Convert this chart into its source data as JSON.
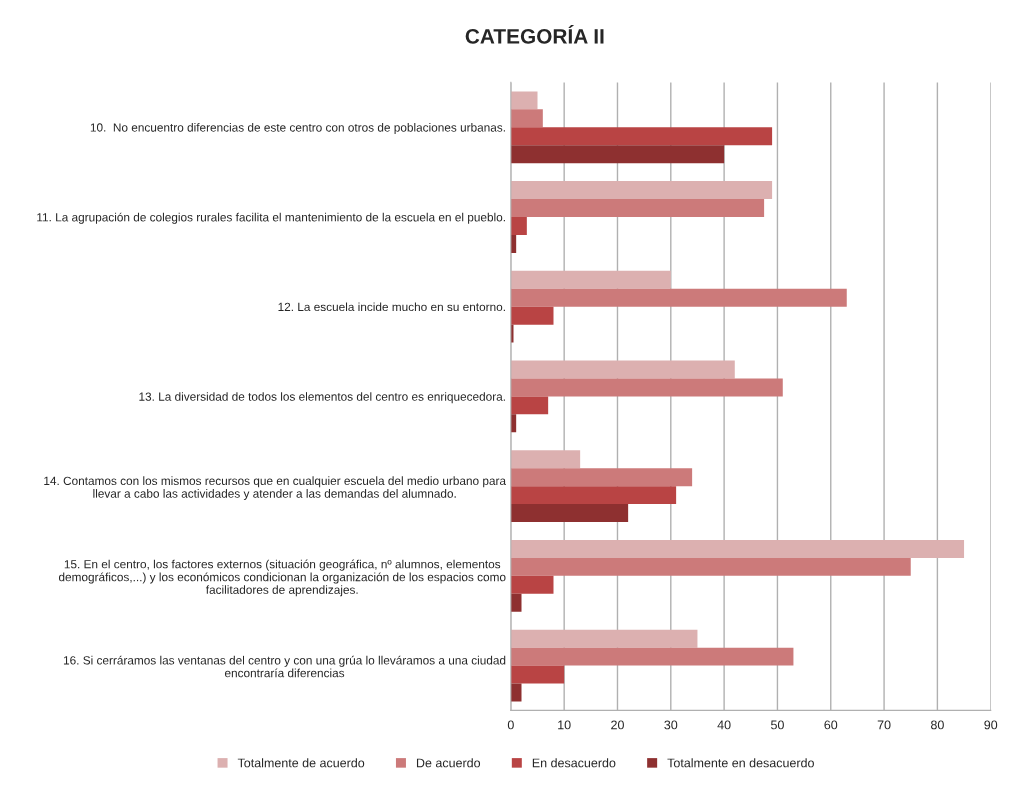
{
  "chart_data": {
    "type": "bar",
    "orientation": "horizontal",
    "title": "CATEGORÍA II",
    "categories": [
      "10.  No encuentro diferencias de este centro con otros de poblaciones urbanas.",
      "11. La agrupación de colegios rurales facilita el mantenimiento de la escuela en el pueblo.",
      "12. La escuela incide mucho en su entorno.",
      "13. La diversidad de todos los elementos del centro es enriquecedora.",
      "14. Contamos con los mismos recursos que en cualquier escuela del medio urbano para\nllevar a cabo las actividades y atender a las demandas del alumnado.",
      "15. En el centro, los factores externos (situación geográfica, nº alumnos, elementos\ndemográficos,...) y los económicos condicionan la organización de los espacios como\nfacilitadores de aprendizajes.",
      "16. Si cerráramos las ventanas del centro y con una grúa lo lleváramos a una ciudad\nencontraría diferencias"
    ],
    "series": [
      {
        "name": "Totalmente de acuerdo",
        "color": "#dcb0b0",
        "values": [
          5,
          49,
          30,
          42,
          13,
          85,
          35
        ]
      },
      {
        "name": "De acuerdo",
        "color": "#cc7a7a",
        "values": [
          6,
          47.5,
          63,
          51,
          34,
          75,
          53
        ]
      },
      {
        "name": "En desacuerdo",
        "color": "#b94444",
        "values": [
          49,
          3,
          8,
          7,
          31,
          8,
          10
        ]
      },
      {
        "name": "Totalmente en desacuerdo",
        "color": "#8e3030",
        "values": [
          40,
          1,
          0.5,
          1,
          22,
          2,
          2
        ]
      }
    ],
    "xlim": [
      0,
      90
    ],
    "xticks": [
      0,
      10,
      20,
      30,
      40,
      50,
      60,
      70,
      80,
      90
    ],
    "grid": "x",
    "legend": "bottom"
  }
}
